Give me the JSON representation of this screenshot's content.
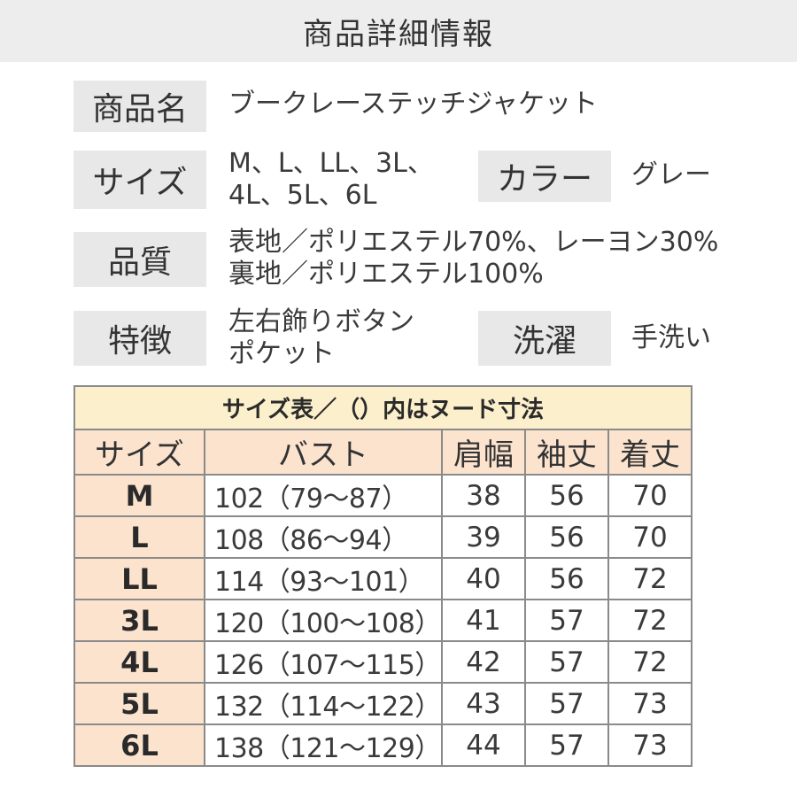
{
  "header": {
    "title": "商品詳細情報"
  },
  "details": {
    "name": {
      "label": "商品名",
      "value": "ブークレーステッチジャケット"
    },
    "size": {
      "label": "サイズ",
      "lines": [
        "M、L、LL、3L、",
        "4L、5L、6L"
      ]
    },
    "color": {
      "label": "カラー",
      "value": "グレー"
    },
    "material": {
      "label": "品質",
      "lines": [
        "表地／ポリエステル70%、レーヨン30%",
        "裏地／ポリエステル100%"
      ]
    },
    "features": {
      "label": "特徴",
      "lines": [
        "左右飾りボタン",
        "ポケット"
      ]
    },
    "washing": {
      "label": "洗濯",
      "value": "手洗い"
    }
  },
  "size_table": {
    "title": "サイズ表／（）内はヌード寸法",
    "headers": [
      "サイズ",
      "バスト",
      "肩幅",
      "袖丈",
      "着丈"
    ],
    "rows": [
      {
        "size": "M",
        "bust": "102（79～87）",
        "shoulder": "38",
        "sleeve": "56",
        "length": "70"
      },
      {
        "size": "L",
        "bust": "108（86～94）",
        "shoulder": "39",
        "sleeve": "56",
        "length": "70"
      },
      {
        "size": "LL",
        "bust": "114（93～101）",
        "shoulder": "40",
        "sleeve": "56",
        "length": "72"
      },
      {
        "size": "3L",
        "bust": "120（100～108）",
        "shoulder": "41",
        "sleeve": "57",
        "length": "72"
      },
      {
        "size": "4L",
        "bust": "126（107～115）",
        "shoulder": "42",
        "sleeve": "57",
        "length": "72"
      },
      {
        "size": "5L",
        "bust": "132（114～122）",
        "shoulder": "43",
        "sleeve": "57",
        "length": "73"
      },
      {
        "size": "6L",
        "bust": "138（121～129）",
        "shoulder": "44",
        "sleeve": "57",
        "length": "73"
      }
    ]
  },
  "colors": {
    "header_bg": "#ededed",
    "label_bg": "#e8e8e8",
    "table_title_bg": "#fcefcb",
    "table_head_bg": "#fbe3ce",
    "border": "#8a8a8a"
  }
}
